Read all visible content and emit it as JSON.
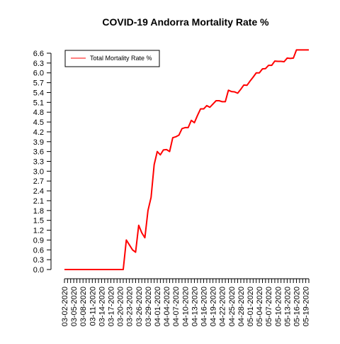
{
  "chart_data": {
    "type": "line",
    "title": "COVID-19 Andorra Mortality Rate %",
    "xlabel": "",
    "ylabel": "",
    "legend": {
      "placement": "top-left",
      "entries": [
        "Total Mortality Rate %"
      ]
    },
    "grid": false,
    "ylim": [
      0,
      6.6
    ],
    "yticks": [
      "0.0",
      "0.3",
      "0.6",
      "0.9",
      "1.2",
      "1.5",
      "1.8",
      "2.1",
      "2.4",
      "2.7",
      "3.0",
      "3.3",
      "3.6",
      "3.9",
      "4.2",
      "4.5",
      "4.8",
      "5.1",
      "5.4",
      "5.7",
      "6.0",
      "6.3",
      "6.6"
    ],
    "xticks": [
      "03-02-2020",
      "03-05-2020",
      "03-08-2020",
      "03-11-2020",
      "03-14-2020",
      "03-17-2020",
      "03-20-2020",
      "03-23-2020",
      "03-26-2020",
      "03-29-2020",
      "04-01-2020",
      "04-04-2020",
      "04-07-2020",
      "04-10-2020",
      "04-13-2020",
      "04-16-2020",
      "04-19-2020",
      "04-22-2020",
      "04-25-2020",
      "04-28-2020",
      "05-01-2020",
      "05-04-2020",
      "05-07-2020",
      "05-10-2020",
      "05-13-2020",
      "05-16-2020",
      "05-19-2020"
    ],
    "series": [
      {
        "name": "Total Mortality Rate %",
        "color": "#ff0000",
        "x": [
          "03-02-2020",
          "03-03-2020",
          "03-04-2020",
          "03-05-2020",
          "03-06-2020",
          "03-07-2020",
          "03-08-2020",
          "03-09-2020",
          "03-10-2020",
          "03-11-2020",
          "03-12-2020",
          "03-13-2020",
          "03-14-2020",
          "03-15-2020",
          "03-16-2020",
          "03-17-2020",
          "03-18-2020",
          "03-19-2020",
          "03-20-2020",
          "03-21-2020",
          "03-22-2020",
          "03-23-2020",
          "03-24-2020",
          "03-25-2020",
          "03-26-2020",
          "03-27-2020",
          "03-28-2020",
          "03-29-2020",
          "03-30-2020",
          "03-31-2020",
          "04-01-2020",
          "04-02-2020",
          "04-03-2020",
          "04-04-2020",
          "04-05-2020",
          "04-06-2020",
          "04-07-2020",
          "04-08-2020",
          "04-09-2020",
          "04-10-2020",
          "04-11-2020",
          "04-12-2020",
          "04-13-2020",
          "04-14-2020",
          "04-15-2020",
          "04-16-2020",
          "04-17-2020",
          "04-18-2020",
          "04-19-2020",
          "04-20-2020",
          "04-21-2020",
          "04-22-2020",
          "04-23-2020",
          "04-24-2020",
          "04-25-2020",
          "04-26-2020",
          "04-27-2020",
          "04-28-2020",
          "04-29-2020",
          "04-30-2020",
          "05-01-2020",
          "05-02-2020",
          "05-03-2020",
          "05-04-2020",
          "05-05-2020",
          "05-06-2020",
          "05-07-2020",
          "05-08-2020",
          "05-09-2020",
          "05-10-2020",
          "05-11-2020",
          "05-12-2020",
          "05-13-2020",
          "05-14-2020",
          "05-15-2020",
          "05-16-2020",
          "05-17-2020",
          "05-18-2020",
          "05-19-2020",
          "05-20-2020"
        ],
        "values": [
          0,
          0,
          0,
          0,
          0,
          0,
          0,
          0,
          0,
          0,
          0,
          0,
          0,
          0,
          0,
          0,
          0,
          0,
          0,
          0,
          0.9,
          0.75,
          0.6,
          0.53,
          1.35,
          1.12,
          0.97,
          1.8,
          2.2,
          3.2,
          3.6,
          3.5,
          3.65,
          3.66,
          3.6,
          4.02,
          4.05,
          4.1,
          4.3,
          4.33,
          4.33,
          4.55,
          4.48,
          4.7,
          4.9,
          4.9,
          5.0,
          4.95,
          5.05,
          5.15,
          5.15,
          5.12,
          5.12,
          5.47,
          5.43,
          5.42,
          5.38,
          5.5,
          5.63,
          5.62,
          5.75,
          5.87,
          6.0,
          6.0,
          6.12,
          6.13,
          6.23,
          6.23,
          6.36,
          6.35,
          6.35,
          6.34,
          6.45,
          6.44,
          6.45,
          6.7,
          6.7,
          6.7,
          6.7,
          6.7
        ]
      }
    ]
  }
}
